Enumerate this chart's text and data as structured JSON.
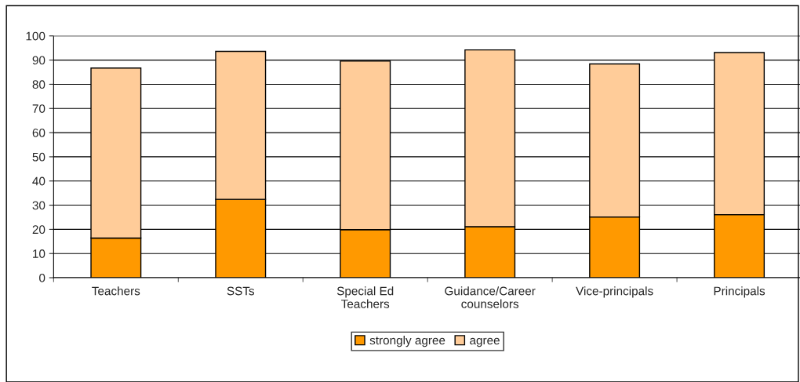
{
  "chart_data": {
    "type": "bar",
    "stacked": true,
    "categories": [
      "Teachers",
      "SSTs",
      "Special Ed\nTeachers",
      "Guidance/Career\ncounselors",
      "Vice-principals",
      "Principals"
    ],
    "series": [
      {
        "name": "strongly agree",
        "color": "#ff9900",
        "values": [
          16.4,
          32.4,
          19.9,
          21.1,
          25.1,
          26.1
        ]
      },
      {
        "name": "agree",
        "color": "#ffcc99",
        "values": [
          70.3,
          61.2,
          69.7,
          73.1,
          63.3,
          67.0
        ]
      }
    ],
    "ylim": [
      0,
      100
    ],
    "yticks": [
      0,
      10,
      20,
      30,
      40,
      50,
      60,
      70,
      80,
      90,
      100
    ],
    "grid": "y",
    "legend": "bottom"
  }
}
